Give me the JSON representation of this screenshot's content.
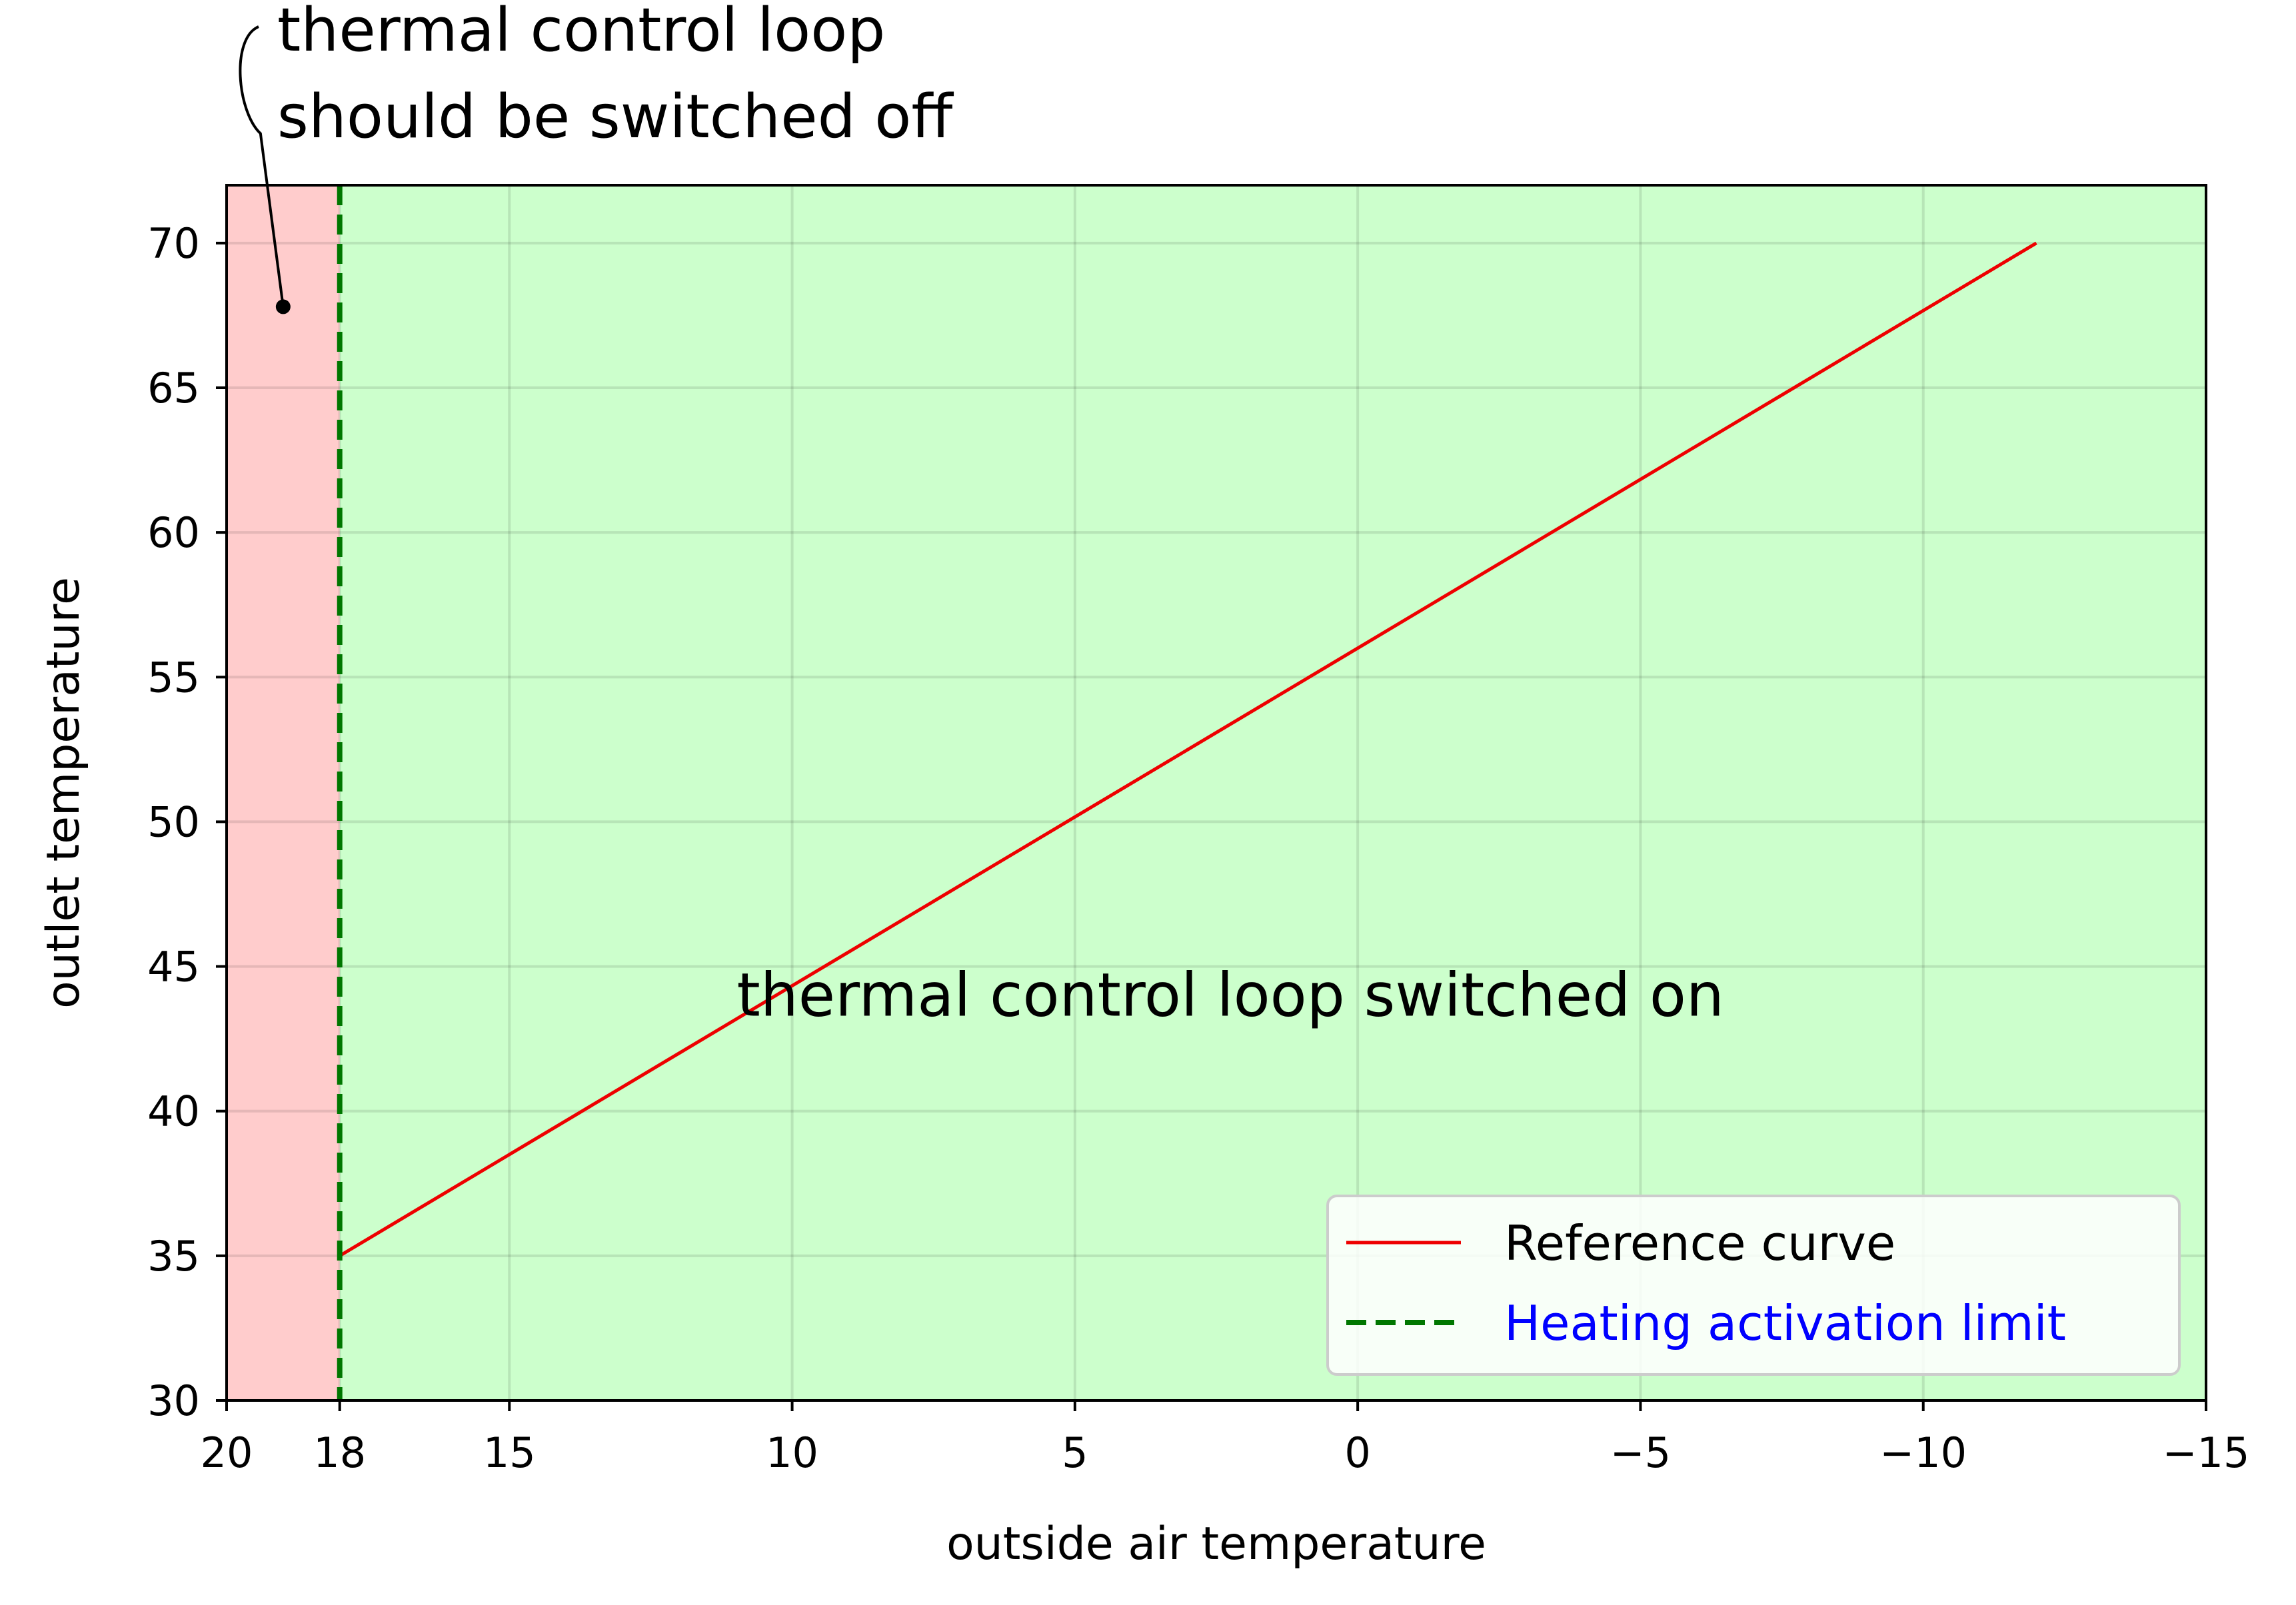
{
  "chart_data": {
    "type": "line",
    "title": "",
    "xlabel": "outside air temperature",
    "ylabel": "outlet temperature",
    "xlim": [
      20,
      -15
    ],
    "ylim": [
      30,
      72
    ],
    "x_inverted": true,
    "grid": true,
    "xticks": [
      {
        "value": 20,
        "label": "20"
      },
      {
        "value": 18,
        "label": "18"
      },
      {
        "value": 15,
        "label": "15"
      },
      {
        "value": 10,
        "label": "10"
      },
      {
        "value": 5,
        "label": "5"
      },
      {
        "value": 0,
        "label": "0"
      },
      {
        "value": -5,
        "label": "−5"
      },
      {
        "value": -10,
        "label": "−10"
      },
      {
        "value": -15,
        "label": "−15"
      }
    ],
    "yticks": [
      {
        "value": 30,
        "label": "30"
      },
      {
        "value": 35,
        "label": "35"
      },
      {
        "value": 40,
        "label": "40"
      },
      {
        "value": 45,
        "label": "45"
      },
      {
        "value": 50,
        "label": "50"
      },
      {
        "value": 55,
        "label": "55"
      },
      {
        "value": 60,
        "label": "60"
      },
      {
        "value": 65,
        "label": "65"
      },
      {
        "value": 70,
        "label": "70"
      }
    ],
    "regions": [
      {
        "x_from": 20,
        "x_to": 18,
        "color": "#ffcccc"
      },
      {
        "x_from": 18,
        "x_to": -15,
        "color": "#ccffcc"
      }
    ],
    "series": [
      {
        "name": "Reference curve",
        "kind": "line",
        "color": "#ee0000",
        "x": [
          18,
          -12
        ],
        "y": [
          35,
          70
        ]
      }
    ],
    "vlines": [
      {
        "name": "Heating activation limit",
        "x": 18,
        "color": "#007700",
        "style": "dashed",
        "legend_color": "#0000ff"
      }
    ],
    "legend": {
      "position": "lower-right"
    },
    "annotations": [
      {
        "id": "switched-off",
        "lines": [
          "thermal control loop",
          "should be switched off"
        ],
        "point": {
          "x": 19,
          "y": 67.8
        }
      },
      {
        "id": "switched-on",
        "lines": [
          "thermal control loop switched on"
        ],
        "anchor": {
          "x": 2.25,
          "y": 43.3
        }
      }
    ]
  }
}
